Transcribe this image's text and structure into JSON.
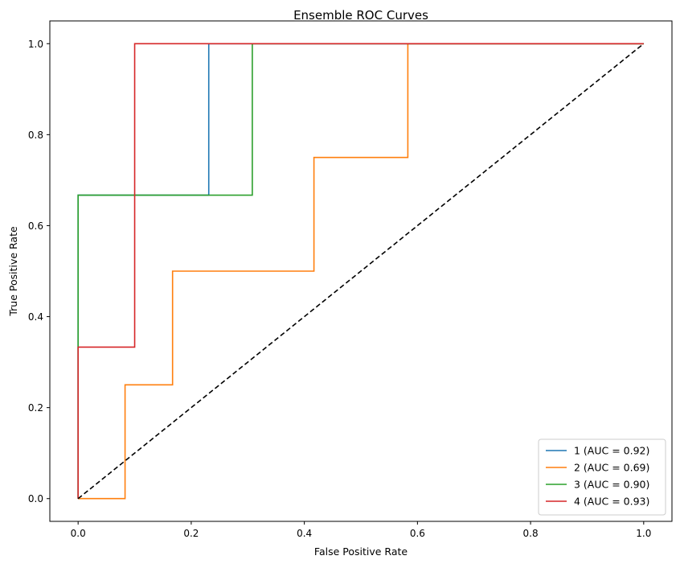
{
  "chart_data": {
    "type": "line",
    "title": "Ensemble ROC Curves",
    "xlabel": "False Positive Rate",
    "ylabel": "True Positive Rate",
    "xlim": [
      -0.05,
      1.05
    ],
    "ylim": [
      -0.05,
      1.05
    ],
    "xticks": [
      "0.0",
      "0.2",
      "0.4",
      "0.6",
      "0.8",
      "1.0"
    ],
    "yticks": [
      "0.0",
      "0.2",
      "0.4",
      "0.6",
      "0.8",
      "1.0"
    ],
    "grid": false,
    "legend_position": "lower-right",
    "series": [
      {
        "name": "1 (AUC = 0.92)",
        "color": "#1f77b4",
        "x": [
          0.0,
          0.0,
          0.231,
          0.231,
          1.0
        ],
        "y": [
          0.0,
          0.667,
          0.667,
          1.0,
          1.0
        ]
      },
      {
        "name": "2 (AUC = 0.69)",
        "color": "#ff7f0e",
        "x": [
          0.0,
          0.083,
          0.083,
          0.167,
          0.167,
          0.417,
          0.417,
          0.583,
          0.583,
          1.0
        ],
        "y": [
          0.0,
          0.0,
          0.25,
          0.25,
          0.5,
          0.5,
          0.75,
          0.75,
          1.0,
          1.0
        ]
      },
      {
        "name": "3 (AUC = 0.90)",
        "color": "#2ca02c",
        "x": [
          0.0,
          0.0,
          0.308,
          0.308,
          1.0
        ],
        "y": [
          0.0,
          0.667,
          0.667,
          1.0,
          1.0
        ]
      },
      {
        "name": "4 (AUC = 0.93)",
        "color": "#d62728",
        "x": [
          0.0,
          0.0,
          0.1,
          0.1,
          1.0
        ],
        "y": [
          0.0,
          0.333,
          0.333,
          1.0,
          1.0
        ]
      }
    ],
    "reference_line": {
      "x": [
        0.0,
        1.0
      ],
      "y": [
        0.0,
        1.0
      ],
      "color": "#000000",
      "style": "dashed"
    }
  }
}
